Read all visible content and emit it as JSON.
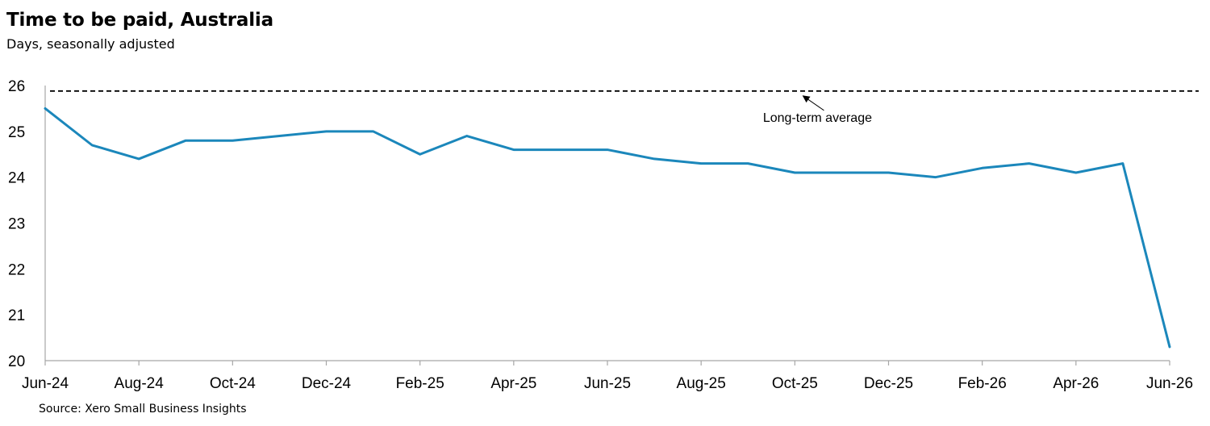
{
  "title": "Time to be paid, Australia",
  "subtitle": "Days, seasonally adjusted",
  "source": "Source: Xero Small Business Insights",
  "colors": {
    "series": "#1B87BB",
    "reference": "#000000",
    "axis": "#A6A6A6"
  },
  "chart_data": {
    "type": "line",
    "title": "Time to be paid, Australia",
    "subtitle": "Days, seasonally adjusted",
    "xlabel": "",
    "ylabel": "",
    "ylim": [
      20,
      26
    ],
    "yticks": [
      20,
      21,
      22,
      23,
      24,
      25,
      26
    ],
    "grid": false,
    "legend": "none",
    "x": [
      "Jun-24",
      "Jul-24",
      "Aug-24",
      "Sep-24",
      "Oct-24",
      "Nov-24",
      "Dec-24",
      "Jan-25",
      "Feb-25",
      "Mar-25",
      "Apr-25",
      "May-25",
      "Jun-25",
      "Jul-25",
      "Aug-25",
      "Sep-25",
      "Oct-25",
      "Nov-25",
      "Dec-25",
      "Jan-26",
      "Feb-26",
      "Mar-26",
      "Apr-26",
      "May-26",
      "Jun-26"
    ],
    "xtick_labels": [
      "Jun-24",
      "Aug-24",
      "Oct-24",
      "Dec-24",
      "Feb-25",
      "Apr-25",
      "Jun-25",
      "Aug-25",
      "Oct-25",
      "Dec-25",
      "Feb-26",
      "Apr-26",
      "Jun-26"
    ],
    "series": [
      {
        "values": [
          25.5,
          24.7,
          24.4,
          24.8,
          24.8,
          24.9,
          25.0,
          25.0,
          24.5,
          24.9,
          24.6,
          24.6,
          24.6,
          24.4,
          24.3,
          24.3,
          24.1,
          24.1,
          24.1,
          24.0,
          24.2,
          24.3,
          24.1,
          24.3,
          20.3
        ],
        "color": "#1B87BB"
      }
    ],
    "reference_line": {
      "value": 25.88,
      "style": "dashed",
      "color": "#000000"
    },
    "annotations": [
      {
        "text": "Long-term average",
        "points_to": "reference_line",
        "arrow": true,
        "at_x": "Nov-25"
      }
    ]
  }
}
